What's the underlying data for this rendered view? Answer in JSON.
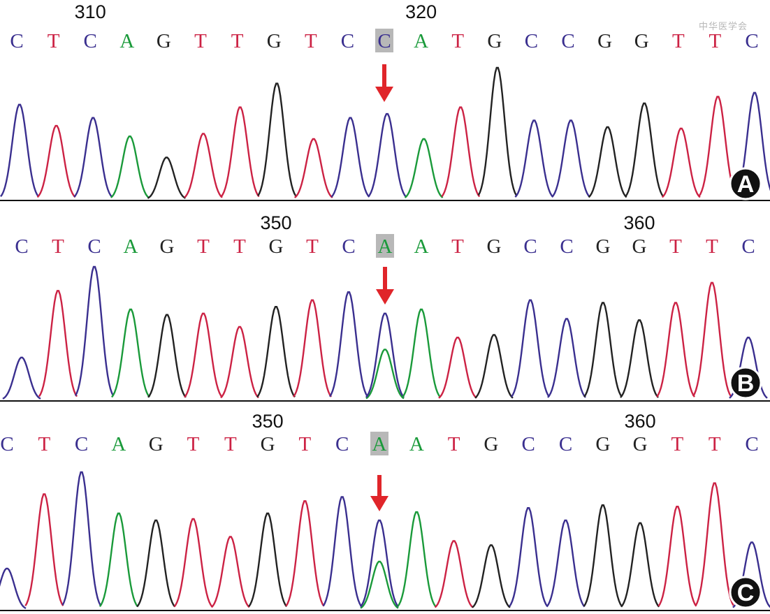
{
  "colors": {
    "C": "#3a2f8f",
    "T": "#cc2244",
    "A": "#1a9a3a",
    "G": "#222222",
    "arrow": "#e0252a",
    "highlight": "#b8b8b8",
    "baseline": "#111111",
    "badge": "#111111"
  },
  "watermark": "中华医学会",
  "panels": [
    {
      "label": "A",
      "positions": [
        {
          "text": "310",
          "index": 2
        },
        {
          "text": "320",
          "index": 11
        }
      ],
      "sequence": [
        "C",
        "T",
        "C",
        "A",
        "G",
        "T",
        "T",
        "G",
        "T",
        "C",
        "C",
        "A",
        "T",
        "G",
        "C",
        "C",
        "G",
        "G",
        "T",
        "T",
        "C"
      ],
      "highlight_index": 10,
      "arrow_index": 10,
      "peaks": [
        {
          "base": "C",
          "h": 0.72
        },
        {
          "base": "T",
          "h": 0.56
        },
        {
          "base": "C",
          "h": 0.62
        },
        {
          "base": "A",
          "h": 0.48
        },
        {
          "base": "G",
          "h": 0.32
        },
        {
          "base": "T",
          "h": 0.5
        },
        {
          "base": "T",
          "h": 0.7
        },
        {
          "base": "G",
          "h": 0.88
        },
        {
          "base": "T",
          "h": 0.46
        },
        {
          "base": "C",
          "h": 0.62
        },
        {
          "base": "C",
          "h": 0.65
        },
        {
          "base": "A",
          "h": 0.46
        },
        {
          "base": "T",
          "h": 0.7
        },
        {
          "base": "G",
          "h": 1.0
        },
        {
          "base": "C",
          "h": 0.6
        },
        {
          "base": "C",
          "h": 0.6
        },
        {
          "base": "G",
          "h": 0.55
        },
        {
          "base": "G",
          "h": 0.73
        },
        {
          "base": "T",
          "h": 0.54
        },
        {
          "base": "T",
          "h": 0.78
        },
        {
          "base": "C",
          "h": 0.81
        }
      ],
      "secondary_peak": null
    },
    {
      "label": "B",
      "positions": [
        {
          "text": "350",
          "index": 7
        },
        {
          "text": "360",
          "index": 17
        }
      ],
      "sequence": [
        "C",
        "T",
        "C",
        "A",
        "G",
        "T",
        "T",
        "G",
        "T",
        "C",
        "A",
        "A",
        "T",
        "G",
        "C",
        "C",
        "G",
        "G",
        "T",
        "T",
        "C"
      ],
      "highlight_index": 10,
      "arrow_index": 10,
      "peaks": [
        {
          "base": "C",
          "h": 0.32
        },
        {
          "base": "T",
          "h": 0.82
        },
        {
          "base": "C",
          "h": 1.0
        },
        {
          "base": "A",
          "h": 0.68
        },
        {
          "base": "G",
          "h": 0.64
        },
        {
          "base": "T",
          "h": 0.65
        },
        {
          "base": "T",
          "h": 0.55
        },
        {
          "base": "G",
          "h": 0.7
        },
        {
          "base": "T",
          "h": 0.75
        },
        {
          "base": "C",
          "h": 0.81
        },
        {
          "base": "C",
          "h": 0.65
        },
        {
          "base": "A",
          "h": 0.68
        },
        {
          "base": "T",
          "h": 0.47
        },
        {
          "base": "G",
          "h": 0.49
        },
        {
          "base": "C",
          "h": 0.75
        },
        {
          "base": "C",
          "h": 0.61
        },
        {
          "base": "G",
          "h": 0.73
        },
        {
          "base": "G",
          "h": 0.6
        },
        {
          "base": "T",
          "h": 0.73
        },
        {
          "base": "T",
          "h": 0.88
        },
        {
          "base": "C",
          "h": 0.47
        }
      ],
      "secondary_peak": {
        "index": 10,
        "base": "A",
        "h": 0.38
      }
    },
    {
      "label": "C",
      "positions": [
        {
          "text": "350",
          "index": 7
        },
        {
          "text": "360",
          "index": 17
        }
      ],
      "sequence": [
        "C",
        "T",
        "C",
        "A",
        "G",
        "T",
        "T",
        "G",
        "T",
        "C",
        "A",
        "A",
        "T",
        "G",
        "C",
        "C",
        "G",
        "G",
        "T",
        "T",
        "C"
      ],
      "highlight_index": 10,
      "arrow_index": 10,
      "peaks": [
        {
          "base": "C",
          "h": 0.3
        },
        {
          "base": "T",
          "h": 0.84
        },
        {
          "base": "C",
          "h": 1.0
        },
        {
          "base": "A",
          "h": 0.7
        },
        {
          "base": "G",
          "h": 0.65
        },
        {
          "base": "T",
          "h": 0.66
        },
        {
          "base": "T",
          "h": 0.53
        },
        {
          "base": "G",
          "h": 0.7
        },
        {
          "base": "T",
          "h": 0.79
        },
        {
          "base": "C",
          "h": 0.82
        },
        {
          "base": "C",
          "h": 0.65
        },
        {
          "base": "A",
          "h": 0.71
        },
        {
          "base": "T",
          "h": 0.5
        },
        {
          "base": "G",
          "h": 0.47
        },
        {
          "base": "C",
          "h": 0.74
        },
        {
          "base": "C",
          "h": 0.65
        },
        {
          "base": "G",
          "h": 0.76
        },
        {
          "base": "G",
          "h": 0.63
        },
        {
          "base": "T",
          "h": 0.75
        },
        {
          "base": "T",
          "h": 0.92
        },
        {
          "base": "C",
          "h": 0.49
        }
      ],
      "secondary_peak": {
        "index": 10,
        "base": "A",
        "h": 0.35
      }
    }
  ]
}
